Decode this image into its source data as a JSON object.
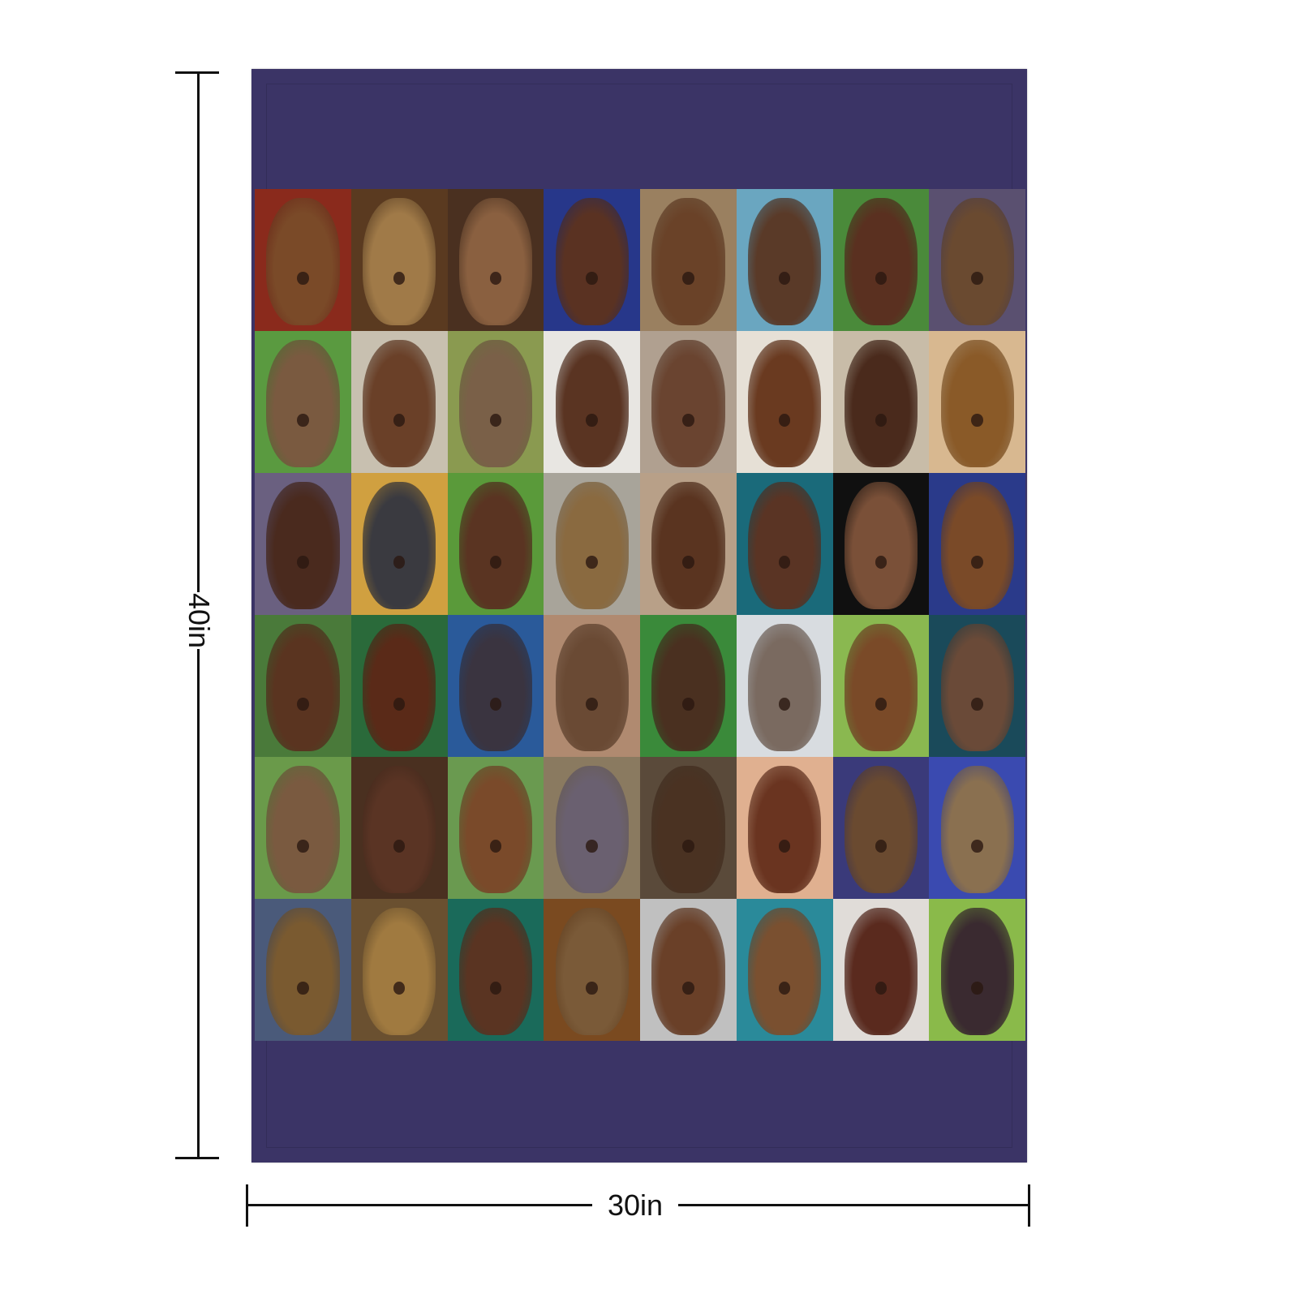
{
  "product": {
    "blanket_color": "#3b3466",
    "height_label": "40in",
    "width_label": "30in",
    "tiles": [
      {
        "bg": "#8a2a1c",
        "fur": "#7a4a28"
      },
      {
        "bg": "#5a3a20",
        "fur": "#a07a48"
      },
      {
        "bg": "#4a3020",
        "fur": "#8a6040"
      },
      {
        "bg": "#27378a",
        "fur": "#5a3222"
      },
      {
        "bg": "#9a8060",
        "fur": "#6a4228"
      },
      {
        "bg": "#6aa6c0",
        "fur": "#5a3a28"
      },
      {
        "bg": "#4a8a3a",
        "fur": "#5a3020"
      },
      {
        "bg": "#5a5070",
        "fur": "#6a4a30"
      },
      {
        "bg": "#5a9a40",
        "fur": "#7a5a40"
      },
      {
        "bg": "#c8c0b0",
        "fur": "#6a4028"
      },
      {
        "bg": "#8a9a50",
        "fur": "#7a6048"
      },
      {
        "bg": "#e8e6e2",
        "fur": "#5a3422"
      },
      {
        "bg": "#b0a090",
        "fur": "#6a4430"
      },
      {
        "bg": "#e6e0d6",
        "fur": "#6a3a20"
      },
      {
        "bg": "#c8bca8",
        "fur": "#4a2a1c"
      },
      {
        "bg": "#d8b890",
        "fur": "#8a5a28"
      },
      {
        "bg": "#6a6080",
        "fur": "#4a2a1e"
      },
      {
        "bg": "#d0a040",
        "fur": "#3a3a40"
      },
      {
        "bg": "#5a9a3a",
        "fur": "#5a3422"
      },
      {
        "bg": "#a8a49a",
        "fur": "#8a6a40"
      },
      {
        "bg": "#b8a088",
        "fur": "#5a3420"
      },
      {
        "bg": "#1a6a7a",
        "fur": "#5a3424"
      },
      {
        "bg": "#101010",
        "fur": "#7a5038"
      },
      {
        "bg": "#2a3a8a",
        "fur": "#7a4a28"
      },
      {
        "bg": "#4a7a3a",
        "fur": "#5a3420"
      },
      {
        "bg": "#2a6a3a",
        "fur": "#5a2a18"
      },
      {
        "bg": "#2a5a9a",
        "fur": "#3a3440"
      },
      {
        "bg": "#b08a70",
        "fur": "#6a4a34"
      },
      {
        "bg": "#3a8a3a",
        "fur": "#4a3020"
      },
      {
        "bg": "#d8dce0",
        "fur": "#7a6a60"
      },
      {
        "bg": "#8ab850",
        "fur": "#7a4a28"
      },
      {
        "bg": "#1a4a5a",
        "fur": "#6a4a38"
      },
      {
        "bg": "#6a9a4a",
        "fur": "#7a5a40"
      },
      {
        "bg": "#4a3020",
        "fur": "#5a3424"
      },
      {
        "bg": "#6a9a50",
        "fur": "#7a4a2a"
      },
      {
        "bg": "#8a7a60",
        "fur": "#6a6070"
      },
      {
        "bg": "#5a4a3a",
        "fur": "#4a3222"
      },
      {
        "bg": "#e0b090",
        "fur": "#6a3420"
      },
      {
        "bg": "#3a3a7a",
        "fur": "#6a4a30"
      },
      {
        "bg": "#3a4ab0",
        "fur": "#8a7050"
      },
      {
        "bg": "#4a5a7a",
        "fur": "#7a5a30"
      },
      {
        "bg": "#6a5030",
        "fur": "#a07a40"
      },
      {
        "bg": "#1a6a5a",
        "fur": "#5a3422"
      },
      {
        "bg": "#7a4a20",
        "fur": "#7a5a38"
      },
      {
        "bg": "#c0c0c0",
        "fur": "#6a4028"
      },
      {
        "bg": "#2a8a9a",
        "fur": "#7a5030"
      },
      {
        "bg": "#e0dcd8",
        "fur": "#5a2a1e"
      },
      {
        "bg": "#8aba4a",
        "fur": "#3a2a30"
      }
    ]
  }
}
